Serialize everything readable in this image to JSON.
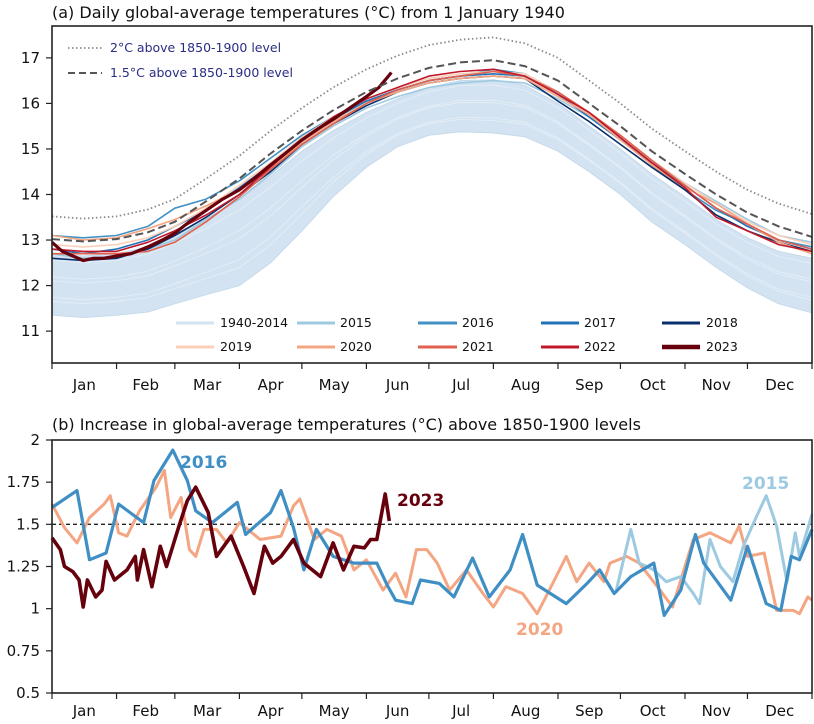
{
  "chart_data": [
    {
      "type": "line",
      "title": "(a) Daily global-average temperatures (°C) from 1 January 1940",
      "xlabel": "",
      "ylabel": "",
      "ylim": [
        10.3,
        17.7
      ],
      "xlim_day_of_year": [
        0,
        365
      ],
      "yticks": [
        "11",
        "12",
        "13",
        "14",
        "15",
        "16",
        "17"
      ],
      "month_labels": [
        "Jan",
        "Feb",
        "Mar",
        "Apr",
        "May",
        "Jun",
        "Jul",
        "Aug",
        "Sep",
        "Oct",
        "Nov",
        "Dec"
      ],
      "grid": false,
      "thresholds": [
        {
          "name": "2°C above 1850-1900 level",
          "style": "dotted",
          "color": "#8a8a8a",
          "offset_from_1_5": 0.5
        },
        {
          "name": "1.5°C above 1850-1900 level",
          "style": "dashed",
          "color": "#555555"
        }
      ],
      "threshold_1_5_curve": {
        "x": [
          0,
          15,
          31,
          46,
          59,
          74,
          90,
          105,
          120,
          135,
          151,
          166,
          181,
          196,
          212,
          227,
          243,
          258,
          273,
          288,
          304,
          319,
          334,
          349,
          365
        ],
        "y": [
          13.02,
          12.97,
          13.02,
          13.17,
          13.4,
          13.85,
          14.35,
          14.9,
          15.4,
          15.85,
          16.25,
          16.55,
          16.78,
          16.9,
          16.95,
          16.82,
          16.5,
          16.0,
          15.5,
          14.95,
          14.45,
          14.0,
          13.6,
          13.3,
          13.07
        ]
      },
      "band_1940_2014": {
        "name": "1940-2014",
        "color": "#d3e3f1",
        "x": [
          0,
          15,
          31,
          46,
          59,
          74,
          90,
          105,
          120,
          135,
          151,
          166,
          181,
          196,
          212,
          227,
          243,
          258,
          273,
          288,
          304,
          319,
          334,
          349,
          365
        ],
        "lower": [
          11.35,
          11.3,
          11.35,
          11.42,
          11.6,
          11.8,
          12.0,
          12.5,
          13.2,
          13.95,
          14.6,
          15.05,
          15.3,
          15.38,
          15.35,
          15.27,
          14.95,
          14.5,
          14.0,
          13.4,
          12.9,
          12.4,
          11.95,
          11.6,
          11.4
        ],
        "upper": [
          12.7,
          12.65,
          12.7,
          12.85,
          13.1,
          13.45,
          13.9,
          14.4,
          14.95,
          15.4,
          15.8,
          16.1,
          16.35,
          16.5,
          16.52,
          16.4,
          16.0,
          15.5,
          15.0,
          14.45,
          13.95,
          13.45,
          13.05,
          12.75,
          12.6
        ]
      },
      "x_days": [
        0,
        15,
        31,
        46,
        59,
        74,
        90,
        105,
        120,
        135,
        151,
        166,
        181,
        196,
        212,
        227,
        243,
        258,
        273,
        288,
        304,
        319,
        334,
        349,
        365
      ],
      "series": [
        {
          "name": "2015",
          "color": "#9ecae1",
          "width": 1.6,
          "y": [
            12.7,
            12.6,
            12.65,
            12.8,
            13.0,
            13.45,
            13.9,
            14.45,
            15.05,
            15.5,
            15.9,
            16.15,
            16.35,
            16.45,
            16.5,
            16.45,
            16.1,
            15.7,
            15.3,
            14.75,
            14.25,
            13.85,
            13.45,
            13.1,
            12.95
          ]
        },
        {
          "name": "2016",
          "color": "#4292c6",
          "width": 1.6,
          "y": [
            13.1,
            13.05,
            13.1,
            13.3,
            13.7,
            13.9,
            14.3,
            14.8,
            15.3,
            15.7,
            16.05,
            16.3,
            16.5,
            16.6,
            16.75,
            16.65,
            16.25,
            15.8,
            15.25,
            14.65,
            14.1,
            13.65,
            13.35,
            13.0,
            12.85
          ]
        },
        {
          "name": "2017",
          "color": "#2171b5",
          "width": 1.6,
          "y": [
            12.8,
            12.7,
            12.8,
            13.0,
            13.3,
            13.65,
            14.15,
            14.65,
            15.25,
            15.65,
            16.05,
            16.3,
            16.5,
            16.6,
            16.65,
            16.6,
            16.2,
            15.7,
            15.2,
            14.7,
            14.2,
            13.7,
            13.3,
            13.0,
            12.8
          ]
        },
        {
          "name": "2018",
          "color": "#08306b",
          "width": 1.6,
          "y": [
            12.6,
            12.55,
            12.6,
            12.8,
            13.1,
            13.5,
            14.0,
            14.5,
            15.1,
            15.55,
            15.95,
            16.25,
            16.45,
            16.55,
            16.6,
            16.55,
            16.05,
            15.6,
            15.1,
            14.6,
            14.1,
            13.55,
            13.2,
            12.95,
            12.75
          ]
        },
        {
          "name": "2019",
          "color": "#fbd0b9",
          "width": 1.6,
          "y": [
            12.9,
            12.85,
            12.9,
            13.05,
            13.3,
            13.7,
            14.2,
            14.7,
            15.25,
            15.7,
            16.1,
            16.35,
            16.55,
            16.65,
            16.7,
            16.65,
            16.25,
            15.8,
            15.3,
            14.75,
            14.25,
            13.8,
            13.4,
            13.1,
            12.9
          ]
        },
        {
          "name": "2020",
          "color": "#f4a582",
          "width": 1.6,
          "y": [
            13.1,
            13.0,
            13.05,
            13.25,
            13.45,
            13.75,
            14.1,
            14.55,
            15.15,
            15.6,
            16.0,
            16.25,
            16.45,
            16.55,
            16.6,
            16.55,
            16.15,
            15.75,
            15.2,
            14.65,
            14.15,
            13.8,
            13.35,
            12.95,
            12.7
          ]
        },
        {
          "name": "2021",
          "color": "#e0614f",
          "width": 1.6,
          "y": [
            12.7,
            12.7,
            12.7,
            12.75,
            12.95,
            13.4,
            13.95,
            14.55,
            15.1,
            15.55,
            16.0,
            16.3,
            16.5,
            16.6,
            16.7,
            16.6,
            16.25,
            15.8,
            15.3,
            14.75,
            14.2,
            13.7,
            13.35,
            13.0,
            12.8
          ]
        },
        {
          "name": "2022",
          "color": "#c0182a",
          "width": 1.6,
          "y": [
            12.8,
            12.75,
            12.75,
            12.95,
            13.2,
            13.55,
            14.0,
            14.6,
            15.2,
            15.7,
            16.1,
            16.35,
            16.6,
            16.7,
            16.75,
            16.6,
            16.2,
            15.8,
            15.25,
            14.7,
            14.15,
            13.5,
            13.2,
            12.9,
            12.75
          ]
        },
        {
          "name": "2023",
          "color": "#67000d",
          "width": 3.2,
          "x": [
            0,
            5,
            10,
            15,
            20,
            25,
            31,
            38,
            46,
            53,
            59,
            66,
            74,
            82,
            90,
            97,
            105,
            112,
            120,
            128,
            135,
            143,
            151,
            157,
            163
          ],
          "y": [
            12.95,
            12.75,
            12.65,
            12.55,
            12.6,
            12.6,
            12.65,
            12.7,
            12.85,
            13.0,
            13.15,
            13.4,
            13.65,
            13.9,
            14.1,
            14.35,
            14.65,
            14.9,
            15.2,
            15.45,
            15.65,
            15.9,
            16.15,
            16.35,
            16.68
          ]
        }
      ],
      "legend": [
        "1940-2014",
        "2015",
        "2016",
        "2017",
        "2018",
        "2019",
        "2020",
        "2021",
        "2022",
        "2023"
      ],
      "legend_placement": "bottom-inside"
    },
    {
      "type": "line",
      "title": "(b) Increase in global-average temperatures (°C) above 1850-1900 levels",
      "xlabel": "",
      "ylabel": "",
      "ylim": [
        0.5,
        2
      ],
      "yticks": [
        "0.5",
        "0.75",
        "1",
        "1.25",
        "1.5",
        "1.75",
        "2"
      ],
      "month_labels": [
        "Jan",
        "Feb",
        "Mar",
        "Apr",
        "May",
        "Jun",
        "Jul",
        "Aug",
        "Sep",
        "Oct",
        "Nov",
        "Dec"
      ],
      "reference_line": 1.5,
      "grid": false,
      "series": [
        {
          "name": "2020",
          "color": "#f4a582",
          "width": 3,
          "x": [
            0,
            6,
            12,
            18,
            25,
            28,
            32,
            36,
            42,
            50,
            54,
            57,
            62,
            66,
            69,
            73,
            79,
            84,
            90,
            100,
            110,
            116,
            119,
            126,
            132,
            139,
            145,
            151,
            159,
            165,
            170,
            175,
            180,
            185,
            191,
            199,
            207,
            212,
            218,
            226,
            233,
            238,
            247,
            252,
            258,
            265,
            268,
            276,
            282,
            292,
            298,
            308,
            316,
            326,
            330,
            334,
            342,
            348,
            356,
            359,
            363,
            365
          ],
          "y": [
            1.62,
            1.48,
            1.39,
            1.54,
            1.62,
            1.67,
            1.45,
            1.43,
            1.58,
            1.72,
            1.82,
            1.54,
            1.66,
            1.35,
            1.31,
            1.47,
            1.47,
            1.39,
            1.51,
            1.41,
            1.43,
            1.61,
            1.65,
            1.41,
            1.47,
            1.43,
            1.23,
            1.29,
            1.11,
            1.21,
            1.07,
            1.35,
            1.35,
            1.27,
            1.11,
            1.23,
            1.09,
            1.01,
            1.13,
            1.09,
            0.97,
            1.09,
            1.31,
            1.16,
            1.27,
            1.16,
            1.27,
            1.31,
            1.27,
            1.11,
            1.01,
            1.41,
            1.45,
            1.39,
            1.49,
            1.31,
            1.33,
            0.99,
            0.99,
            0.97,
            1.07,
            1.05
          ]
        },
        {
          "name": "2015",
          "color": "#9ecae1",
          "width": 3,
          "x": [
            271,
            278,
            282,
            289,
            295,
            302,
            308,
            311,
            316,
            321,
            327,
            332,
            337,
            343,
            348,
            353,
            357,
            359,
            365
          ],
          "y": [
            1.11,
            1.47,
            1.27,
            1.23,
            1.16,
            1.19,
            1.09,
            1.03,
            1.41,
            1.25,
            1.16,
            1.37,
            1.51,
            1.67,
            1.49,
            1.16,
            1.45,
            1.31,
            1.56
          ]
        },
        {
          "name": "2016",
          "color": "#3f8fc5",
          "width": 3.2,
          "x": [
            0,
            12,
            18,
            26,
            32,
            44,
            49,
            58,
            65,
            69,
            77,
            89,
            93,
            105,
            110,
            116,
            121,
            127,
            135,
            145,
            156,
            161,
            165,
            173,
            177,
            186,
            193,
            202,
            210,
            220,
            226,
            233,
            247,
            257,
            263,
            270,
            278,
            289,
            294,
            302,
            309,
            313,
            326,
            334,
            343,
            350,
            355,
            359,
            365
          ],
          "y": [
            1.6,
            1.7,
            1.29,
            1.33,
            1.62,
            1.51,
            1.76,
            1.94,
            1.76,
            1.58,
            1.51,
            1.63,
            1.44,
            1.57,
            1.7,
            1.48,
            1.23,
            1.47,
            1.31,
            1.27,
            1.27,
            1.14,
            1.05,
            1.03,
            1.17,
            1.15,
            1.07,
            1.3,
            1.07,
            1.23,
            1.44,
            1.14,
            1.03,
            1.15,
            1.23,
            1.09,
            1.19,
            1.27,
            0.96,
            1.11,
            1.44,
            1.27,
            1.05,
            1.37,
            1.03,
            0.99,
            1.31,
            1.29,
            1.47
          ]
        },
        {
          "name": "2023",
          "color": "#67000d",
          "width": 3.6,
          "x": [
            0,
            4,
            6,
            10,
            13,
            15,
            17,
            21,
            24,
            26,
            30,
            36,
            40,
            41,
            44,
            48,
            52,
            55,
            61,
            65,
            69,
            75,
            79,
            86,
            92,
            97,
            102,
            106,
            110,
            116,
            121,
            129,
            135,
            140,
            145,
            150,
            153,
            156,
            160,
            162
          ],
          "y": [
            1.42,
            1.35,
            1.25,
            1.22,
            1.17,
            1.01,
            1.17,
            1.07,
            1.11,
            1.28,
            1.17,
            1.23,
            1.31,
            1.17,
            1.35,
            1.13,
            1.37,
            1.25,
            1.49,
            1.64,
            1.72,
            1.57,
            1.31,
            1.43,
            1.25,
            1.09,
            1.37,
            1.27,
            1.31,
            1.41,
            1.27,
            1.19,
            1.39,
            1.23,
            1.37,
            1.36,
            1.41,
            1.41,
            1.68,
            1.52
          ]
        }
      ],
      "annotations": [
        {
          "text": "2016",
          "color": "#3f8fc5",
          "series": "2016"
        },
        {
          "text": "2023",
          "color": "#67000d",
          "series": "2023"
        },
        {
          "text": "2020",
          "color": "#f4a582",
          "series": "2020"
        },
        {
          "text": "2015",
          "color": "#9ecae1",
          "series": "2015"
        }
      ]
    }
  ]
}
